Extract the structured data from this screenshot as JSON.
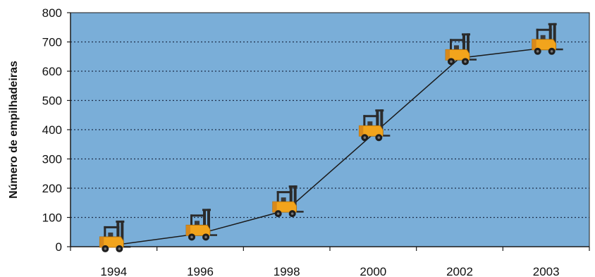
{
  "chart_data": {
    "type": "line",
    "title": "",
    "xlabel": "",
    "ylabel": "Número de empilhadeiras",
    "categories": [
      "1994",
      "1996",
      "1998",
      "2000",
      "2002",
      "2003"
    ],
    "series": [
      {
        "values": [
          5,
          45,
          125,
          385,
          645,
          680
        ],
        "marker": "forklift-icon"
      }
    ],
    "ylim": [
      0,
      800
    ],
    "yticks": [
      0,
      100,
      200,
      300,
      400,
      500,
      600,
      700,
      800
    ],
    "grid": "horizontal dotted",
    "legend": "none",
    "colors": {
      "plot_background": "#7aaed8",
      "line": "#1a1a1a",
      "grid": "#1f2f4a",
      "forklift_body": "#f2a41c",
      "forklift_mast": "#2b2b2b"
    }
  }
}
